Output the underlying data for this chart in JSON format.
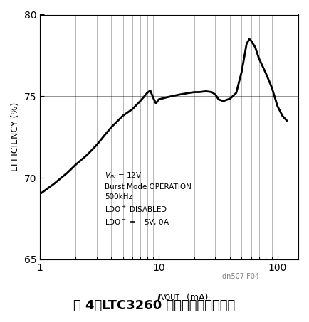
{
  "x_data": [
    1,
    1.3,
    1.7,
    2,
    2.5,
    3,
    3.5,
    4,
    5,
    6,
    7,
    8,
    8.5,
    9,
    9.5,
    10,
    12,
    15,
    18,
    20,
    22,
    25,
    28,
    30,
    32,
    35,
    40,
    45,
    50,
    55,
    58,
    60,
    65,
    70,
    80,
    90,
    100,
    110,
    120
  ],
  "y_data": [
    69.0,
    69.6,
    70.3,
    70.8,
    71.4,
    72.0,
    72.6,
    73.1,
    73.8,
    74.2,
    74.7,
    75.2,
    75.35,
    74.9,
    74.55,
    74.8,
    74.95,
    75.1,
    75.2,
    75.25,
    75.25,
    75.3,
    75.25,
    75.1,
    74.8,
    74.7,
    74.85,
    75.2,
    76.5,
    78.2,
    78.5,
    78.4,
    78.0,
    77.3,
    76.4,
    75.5,
    74.4,
    73.8,
    73.5
  ],
  "xlim": [
    1,
    150
  ],
  "ylim": [
    65,
    80
  ],
  "yticks": [
    65,
    70,
    75,
    80
  ],
  "xlabel": "I",
  "xlabel_sub": "VOUT",
  "xlabel_unit": " (mA)",
  "ylabel": "EFFICIENCY (%)",
  "annotation_lines": [
    "VₛN = 12V",
    "Burst Mode OPERATION",
    "500kHz",
    "LDO⁺ D​ISABLED",
    "LDO⁻ = –5V, 0A"
  ],
  "watermark": "dn507 F04",
  "title": "图 4：LTC3260 突发模式操作的效率",
  "line_color": "#000000",
  "line_width": 2.0
}
